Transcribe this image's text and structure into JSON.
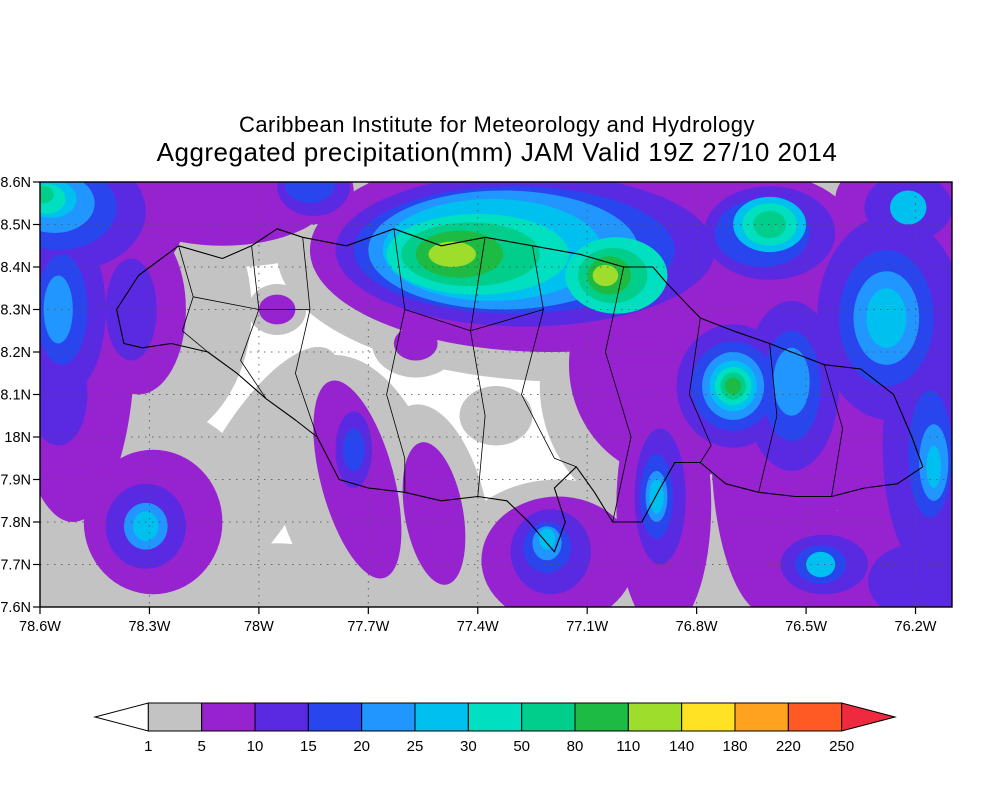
{
  "header": {
    "line1": "Caribbean Institute for Meteorology and Hydrology",
    "line2": "Aggregated precipitation(mm) JAM Valid 19Z 27/10 2014"
  },
  "chart_data": {
    "type": "heatmap",
    "subtype": "filled-contour-precipitation-map",
    "title": "Aggregated precipitation(mm) JAM Valid 19Z 27/10 2014",
    "institution": "Caribbean Institute for Meteorology and Hydrology",
    "region": "Jamaica (JAM)",
    "grid": "dotted",
    "x_axis": {
      "min": 78.6,
      "max": 76.1,
      "unit": "degrees West",
      "ticks": [
        {
          "v": 78.6,
          "label": "78.6W"
        },
        {
          "v": 78.3,
          "label": "78.3W"
        },
        {
          "v": 78.0,
          "label": "78W"
        },
        {
          "v": 77.7,
          "label": "77.7W"
        },
        {
          "v": 77.4,
          "label": "77.4W"
        },
        {
          "v": 77.1,
          "label": "77.1W"
        },
        {
          "v": 76.8,
          "label": "76.8W"
        },
        {
          "v": 76.5,
          "label": "76.5W"
        },
        {
          "v": 76.2,
          "label": "76.2W"
        }
      ]
    },
    "y_axis": {
      "min": 17.6,
      "max": 18.6,
      "unit": "degrees North",
      "ticks": [
        {
          "v": 18.6,
          "label": "18.6N"
        },
        {
          "v": 18.5,
          "label": "18.5N"
        },
        {
          "v": 18.4,
          "label": "18.4N"
        },
        {
          "v": 18.3,
          "label": "18.3N"
        },
        {
          "v": 18.2,
          "label": "18.2N"
        },
        {
          "v": 18.1,
          "label": "18.1N"
        },
        {
          "v": 18.0,
          "label": "18N"
        },
        {
          "v": 17.9,
          "label": "17.9N"
        },
        {
          "v": 17.8,
          "label": "17.8N"
        },
        {
          "v": 17.7,
          "label": "17.7N"
        },
        {
          "v": 17.6,
          "label": "17.6N"
        }
      ]
    },
    "legend": {
      "levels": [
        1,
        5,
        10,
        15,
        20,
        25,
        30,
        50,
        80,
        110,
        140,
        180,
        220,
        250
      ],
      "colors": [
        "#c3c3c3",
        "#9722cf",
        "#5a2ae3",
        "#2945ee",
        "#2196ff",
        "#00c0f0",
        "#00dfc0",
        "#00ce8a",
        "#1dbb44",
        "#9edd2b",
        "#ffe224",
        "#ffa21f",
        "#ff5a24"
      ],
      "under_color": "#ffffff",
      "over_color": "#ef2a3f",
      "position": "bottom"
    },
    "features": [
      [
        78.47,
        18.5,
        0.38,
        0.24,
        0,
        0
      ],
      [
        78.08,
        18.56,
        0.4,
        0.16,
        0,
        0
      ],
      [
        77.15,
        18.43,
        0.8,
        0.3,
        0,
        0
      ],
      [
        76.7,
        18.5,
        0.55,
        0.22,
        0,
        0
      ],
      [
        76.22,
        18.15,
        0.45,
        0.85,
        0,
        0
      ],
      [
        76.85,
        18.12,
        0.38,
        0.33,
        0,
        0
      ],
      [
        78.5,
        18.15,
        0.24,
        0.6,
        0,
        0
      ],
      [
        78.3,
        18.3,
        0.28,
        0.32,
        0,
        0
      ],
      [
        78.29,
        17.8,
        0.3,
        0.27,
        0,
        0
      ],
      [
        78.48,
        17.66,
        0.22,
        0.12,
        0,
        0
      ],
      [
        78.0,
        17.92,
        0.14,
        0.33,
        30,
        0
      ],
      [
        77.73,
        17.88,
        0.22,
        0.32,
        -15,
        0
      ],
      [
        77.52,
        17.8,
        0.15,
        0.28,
        -10,
        0
      ],
      [
        77.18,
        17.7,
        0.3,
        0.2,
        0,
        0
      ],
      [
        76.9,
        17.83,
        0.22,
        0.38,
        0,
        0
      ],
      [
        76.6,
        17.98,
        0.26,
        0.5,
        0,
        0
      ],
      [
        76.3,
        17.75,
        0.45,
        0.3,
        0,
        0
      ],
      [
        77.95,
        17.65,
        0.22,
        0.1,
        0,
        0
      ],
      [
        77.57,
        18.22,
        0.12,
        0.08,
        0,
        0
      ],
      [
        77.95,
        18.3,
        0.08,
        0.06,
        0,
        0
      ],
      [
        77.35,
        18.05,
        0.1,
        0.07,
        0,
        0
      ],
      [
        76.45,
        17.71,
        0.3,
        0.16,
        0,
        0
      ],
      [
        77.05,
        17.62,
        0.25,
        0.12,
        0,
        0
      ],
      [
        78.5,
        18.52,
        0.3,
        0.19,
        0,
        1
      ],
      [
        78.1,
        18.57,
        0.3,
        0.12,
        0,
        1
      ],
      [
        77.2,
        18.44,
        0.66,
        0.24,
        0,
        1
      ],
      [
        76.62,
        18.47,
        0.26,
        0.15,
        0,
        1
      ],
      [
        76.22,
        18.3,
        0.28,
        0.38,
        0,
        1
      ],
      [
        76.18,
        17.92,
        0.24,
        0.4,
        0,
        1
      ],
      [
        76.2,
        18.56,
        0.22,
        0.11,
        0,
        1
      ],
      [
        76.85,
        18.17,
        0.3,
        0.27,
        0,
        1
      ],
      [
        76.7,
        18.12,
        0.23,
        0.21,
        0,
        1
      ],
      [
        78.51,
        18.22,
        0.17,
        0.42,
        0,
        1
      ],
      [
        78.33,
        18.3,
        0.13,
        0.2,
        0,
        1
      ],
      [
        78.29,
        17.8,
        0.19,
        0.17,
        0,
        1
      ],
      [
        77.73,
        17.9,
        0.1,
        0.24,
        -15,
        1
      ],
      [
        77.52,
        17.82,
        0.08,
        0.17,
        -10,
        1
      ],
      [
        77.18,
        17.71,
        0.21,
        0.15,
        0,
        1
      ],
      [
        76.89,
        17.84,
        0.13,
        0.3,
        0,
        1
      ],
      [
        76.6,
        17.98,
        0.16,
        0.4,
        0,
        1
      ],
      [
        76.22,
        17.7,
        0.28,
        0.16,
        0,
        1
      ],
      [
        76.47,
        17.71,
        0.22,
        0.12,
        0,
        1
      ],
      [
        77.57,
        18.22,
        0.06,
        0.04,
        0,
        1
      ],
      [
        77.95,
        18.3,
        0.05,
        0.035,
        0,
        1
      ],
      [
        76.45,
        18.1,
        0.16,
        0.28,
        0,
        1
      ],
      [
        77.86,
        18.58,
        0.12,
        0.08,
        0,
        1
      ],
      [
        78.53,
        18.53,
        0.22,
        0.14,
        0,
        2
      ],
      [
        77.27,
        18.44,
        0.52,
        0.18,
        0,
        2
      ],
      [
        76.6,
        18.48,
        0.18,
        0.11,
        0,
        2
      ],
      [
        76.27,
        18.28,
        0.2,
        0.24,
        0,
        2
      ],
      [
        76.16,
        17.98,
        0.13,
        0.3,
        0,
        2
      ],
      [
        76.7,
        18.12,
        0.155,
        0.145,
        0,
        2
      ],
      [
        78.53,
        18.3,
        0.11,
        0.2,
        0,
        2
      ],
      [
        78.55,
        18.1,
        0.08,
        0.12,
        0,
        2
      ],
      [
        78.31,
        17.79,
        0.11,
        0.1,
        0,
        2
      ],
      [
        78.35,
        18.3,
        0.07,
        0.12,
        0,
        2
      ],
      [
        77.74,
        17.97,
        0.05,
        0.09,
        0,
        2
      ],
      [
        77.2,
        17.73,
        0.11,
        0.1,
        0,
        2
      ],
      [
        76.9,
        17.86,
        0.07,
        0.16,
        0,
        2
      ],
      [
        76.45,
        17.7,
        0.12,
        0.07,
        0,
        2
      ],
      [
        76.19,
        17.66,
        0.14,
        0.09,
        0,
        2
      ],
      [
        76.54,
        18.12,
        0.13,
        0.2,
        0,
        2
      ],
      [
        77.85,
        18.59,
        0.1,
        0.07,
        0,
        2
      ],
      [
        76.22,
        18.54,
        0.12,
        0.08,
        0,
        2
      ],
      [
        78.55,
        18.54,
        0.16,
        0.1,
        0,
        3
      ],
      [
        77.3,
        18.44,
        0.44,
        0.15,
        0,
        3
      ],
      [
        76.62,
        18.48,
        0.13,
        0.08,
        0,
        3
      ],
      [
        76.28,
        18.28,
        0.13,
        0.16,
        0,
        3
      ],
      [
        76.7,
        18.12,
        0.115,
        0.105,
        0,
        3
      ],
      [
        78.54,
        18.3,
        0.07,
        0.13,
        0,
        3
      ],
      [
        77.74,
        17.97,
        0.03,
        0.05,
        0,
        3
      ],
      [
        77.21,
        17.74,
        0.065,
        0.06,
        0,
        3
      ],
      [
        76.91,
        17.86,
        0.045,
        0.1,
        0,
        3
      ],
      [
        76.54,
        18.12,
        0.08,
        0.13,
        0,
        3
      ],
      [
        76.16,
        17.96,
        0.06,
        0.15,
        0,
        3
      ],
      [
        77.86,
        18.6,
        0.07,
        0.05,
        0,
        3
      ],
      [
        76.46,
        17.7,
        0.07,
        0.045,
        0,
        3
      ],
      [
        77.33,
        18.44,
        0.37,
        0.14,
        0,
        4
      ],
      [
        78.56,
        18.55,
        0.11,
        0.07,
        0,
        4
      ],
      [
        76.7,
        18.12,
        0.085,
        0.08,
        0,
        4
      ],
      [
        76.28,
        18.28,
        0.09,
        0.11,
        0,
        4
      ],
      [
        76.54,
        18.13,
        0.05,
        0.08,
        0,
        4
      ],
      [
        78.55,
        18.3,
        0.04,
        0.08,
        0,
        4
      ],
      [
        76.15,
        17.94,
        0.04,
        0.09,
        0,
        4
      ],
      [
        78.31,
        17.79,
        0.06,
        0.055,
        0,
        4
      ],
      [
        77.21,
        17.75,
        0.04,
        0.04,
        0,
        4
      ],
      [
        76.91,
        17.86,
        0.03,
        0.06,
        0,
        4
      ],
      [
        77.36,
        18.44,
        0.3,
        0.12,
        0,
        5
      ],
      [
        76.7,
        18.12,
        0.065,
        0.06,
        0,
        5
      ],
      [
        76.28,
        18.28,
        0.055,
        0.07,
        0,
        5
      ],
      [
        78.57,
        18.56,
        0.07,
        0.045,
        0,
        5
      ],
      [
        78.31,
        17.79,
        0.035,
        0.035,
        0,
        5
      ],
      [
        76.46,
        17.7,
        0.04,
        0.03,
        0,
        5
      ],
      [
        76.91,
        17.86,
        0.02,
        0.04,
        0,
        5
      ],
      [
        76.22,
        18.54,
        0.05,
        0.04,
        0,
        5
      ],
      [
        76.15,
        17.93,
        0.02,
        0.05,
        0,
        5
      ],
      [
        77.21,
        17.76,
        0.022,
        0.025,
        0,
        5
      ],
      [
        76.6,
        18.5,
        0.1,
        0.065,
        0,
        5
      ],
      [
        77.4,
        18.43,
        0.25,
        0.095,
        0,
        6
      ],
      [
        77.02,
        18.38,
        0.14,
        0.09,
        0,
        6
      ],
      [
        76.7,
        18.12,
        0.05,
        0.045,
        0,
        6
      ],
      [
        76.6,
        18.5,
        0.075,
        0.05,
        0,
        6
      ],
      [
        78.58,
        18.56,
        0.05,
        0.035,
        0,
        6
      ],
      [
        77.42,
        18.43,
        0.19,
        0.075,
        0,
        7
      ],
      [
        77.03,
        18.38,
        0.095,
        0.065,
        0,
        7
      ],
      [
        76.7,
        18.12,
        0.035,
        0.032,
        0,
        7
      ],
      [
        76.6,
        18.5,
        0.045,
        0.032,
        0,
        7
      ],
      [
        78.59,
        18.57,
        0.028,
        0.02,
        0,
        7
      ],
      [
        77.45,
        18.43,
        0.12,
        0.055,
        0,
        8
      ],
      [
        77.04,
        18.38,
        0.06,
        0.045,
        0,
        8
      ],
      [
        76.7,
        18.12,
        0.022,
        0.02,
        0,
        8
      ],
      [
        77.47,
        18.43,
        0.065,
        0.03,
        0,
        9
      ],
      [
        77.05,
        18.38,
        0.035,
        0.025,
        0,
        9
      ]
    ],
    "coastline": [
      [
        78.37,
        18.22
      ],
      [
        78.39,
        18.3
      ],
      [
        78.33,
        18.38
      ],
      [
        78.22,
        18.45
      ],
      [
        78.1,
        18.42
      ],
      [
        78.02,
        18.45
      ],
      [
        77.95,
        18.49
      ],
      [
        77.88,
        18.47
      ],
      [
        77.76,
        18.45
      ],
      [
        77.63,
        18.49
      ],
      [
        77.5,
        18.45
      ],
      [
        77.38,
        18.47
      ],
      [
        77.25,
        18.45
      ],
      [
        77.12,
        18.43
      ],
      [
        77.0,
        18.4
      ],
      [
        76.92,
        18.4
      ],
      [
        76.88,
        18.36
      ],
      [
        76.79,
        18.28
      ],
      [
        76.7,
        18.25
      ],
      [
        76.6,
        18.22
      ],
      [
        76.51,
        18.19
      ],
      [
        76.45,
        18.17
      ],
      [
        76.35,
        18.16
      ],
      [
        76.26,
        18.1
      ],
      [
        76.21,
        18.0
      ],
      [
        76.18,
        17.93
      ],
      [
        76.25,
        17.89
      ],
      [
        76.34,
        17.88
      ],
      [
        76.43,
        17.86
      ],
      [
        76.53,
        17.86
      ],
      [
        76.63,
        17.87
      ],
      [
        76.72,
        17.89
      ],
      [
        76.79,
        17.94
      ],
      [
        76.86,
        17.94
      ],
      [
        76.9,
        17.88
      ],
      [
        76.95,
        17.8
      ],
      [
        77.03,
        17.8
      ],
      [
        77.08,
        17.87
      ],
      [
        77.13,
        17.93
      ],
      [
        77.19,
        17.88
      ],
      [
        77.16,
        17.8
      ],
      [
        77.19,
        17.73
      ],
      [
        77.26,
        17.8
      ],
      [
        77.32,
        17.85
      ],
      [
        77.4,
        17.86
      ],
      [
        77.5,
        17.85
      ],
      [
        77.6,
        17.87
      ],
      [
        77.7,
        17.88
      ],
      [
        77.78,
        17.9
      ],
      [
        77.84,
        18.0
      ],
      [
        77.9,
        18.04
      ],
      [
        77.98,
        18.09
      ],
      [
        78.06,
        18.15
      ],
      [
        78.14,
        18.2
      ],
      [
        78.24,
        18.22
      ],
      [
        78.32,
        18.21
      ],
      [
        78.37,
        18.22
      ]
    ],
    "boundaries": [
      [
        [
          78.22,
          18.45
        ],
        [
          78.18,
          18.33
        ],
        [
          78.21,
          18.25
        ],
        [
          78.14,
          18.2
        ]
      ],
      [
        [
          78.02,
          18.45
        ],
        [
          78.0,
          18.3
        ],
        [
          78.05,
          18.18
        ],
        [
          77.98,
          18.09
        ]
      ],
      [
        [
          77.88,
          18.47
        ],
        [
          77.86,
          18.3
        ],
        [
          77.9,
          18.15
        ],
        [
          77.84,
          18.0
        ]
      ],
      [
        [
          77.63,
          18.49
        ],
        [
          77.6,
          18.3
        ],
        [
          77.65,
          18.1
        ],
        [
          77.6,
          17.95
        ],
        [
          77.6,
          17.87
        ]
      ],
      [
        [
          77.38,
          18.47
        ],
        [
          77.42,
          18.25
        ],
        [
          77.38,
          18.05
        ],
        [
          77.4,
          17.86
        ]
      ],
      [
        [
          77.25,
          18.45
        ],
        [
          77.22,
          18.3
        ],
        [
          77.28,
          18.1
        ],
        [
          77.19,
          17.95
        ],
        [
          77.13,
          17.93
        ]
      ],
      [
        [
          77.0,
          18.4
        ],
        [
          77.05,
          18.2
        ],
        [
          76.98,
          18.0
        ],
        [
          77.03,
          17.8
        ]
      ],
      [
        [
          76.79,
          18.28
        ],
        [
          76.82,
          18.1
        ],
        [
          76.76,
          17.98
        ],
        [
          76.79,
          17.94
        ]
      ],
      [
        [
          76.6,
          18.22
        ],
        [
          76.58,
          18.05
        ],
        [
          76.63,
          17.87
        ]
      ],
      [
        [
          76.45,
          18.17
        ],
        [
          76.4,
          18.02
        ],
        [
          76.43,
          17.86
        ]
      ],
      [
        [
          78.18,
          18.33
        ],
        [
          78.0,
          18.3
        ],
        [
          77.86,
          18.3
        ]
      ],
      [
        [
          77.6,
          18.3
        ],
        [
          77.42,
          18.25
        ],
        [
          77.22,
          18.3
        ]
      ]
    ]
  }
}
